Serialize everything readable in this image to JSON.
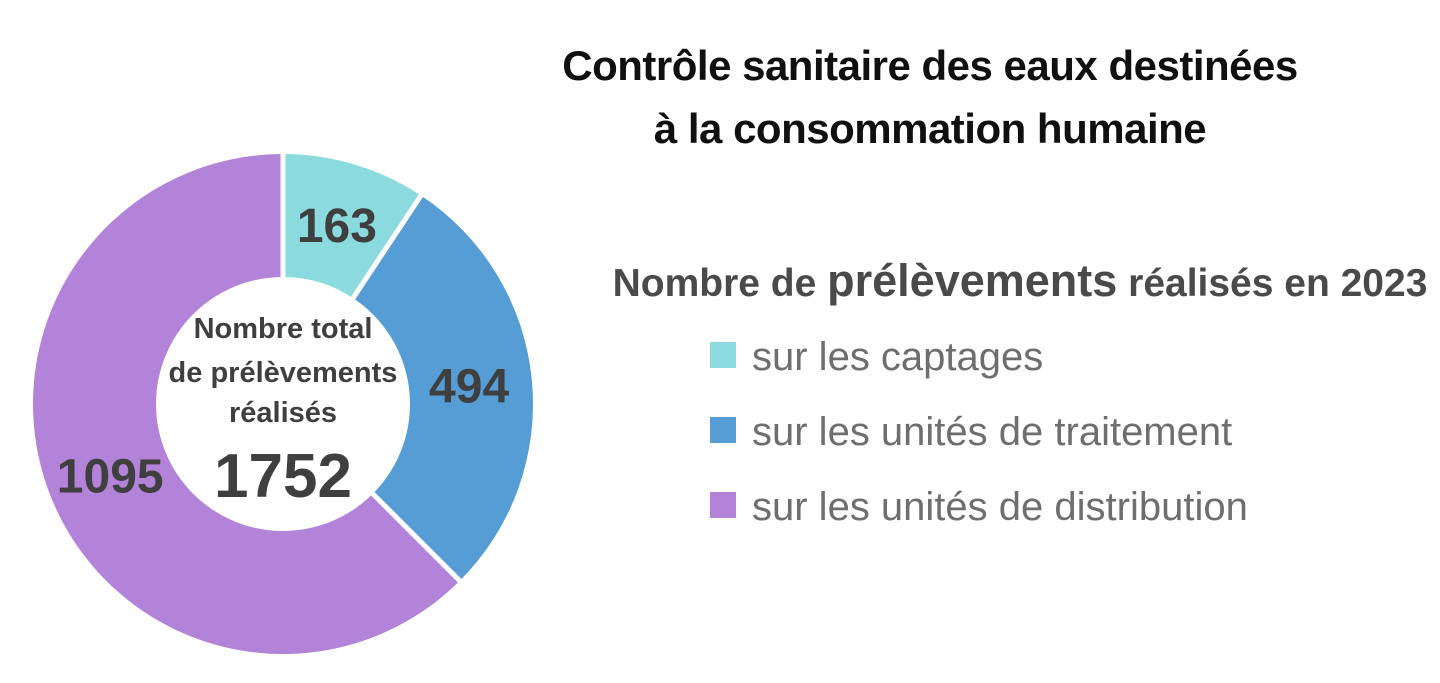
{
  "page_title": {
    "line1": "Contrôle sanitaire des eaux destinées",
    "line2": "à la consommation humaine"
  },
  "chart_data": {
    "type": "pie",
    "subtype": "donut",
    "direction": "clockwise",
    "start_angle_deg": 0,
    "legend_position": "right",
    "legend_title": {
      "pre": "Nombre de",
      "emph": "prélèvements",
      "post": "réalisés en 2023"
    },
    "slices": [
      {
        "label": "sur les captages",
        "value": 163,
        "color": "#8bdbde"
      },
      {
        "label": "sur les unités de traitement",
        "value": 494,
        "color": "#559dd4"
      },
      {
        "label": "sur les unités de distribution",
        "value": 1095,
        "color": "#b283d9"
      }
    ],
    "total": 1752,
    "center_label": {
      "line1": "Nombre total",
      "line2": "de prélèvements",
      "line3": "réalisés",
      "total": "1752"
    },
    "colors": {
      "slice_value_label": "#3f3f3f",
      "center_text": "#3f3f3f",
      "title_text": "#101010",
      "legend_heading_text": "#4a4a4a",
      "legend_item_text": "#6e6e6e",
      "separator": "#ffffff"
    }
  }
}
